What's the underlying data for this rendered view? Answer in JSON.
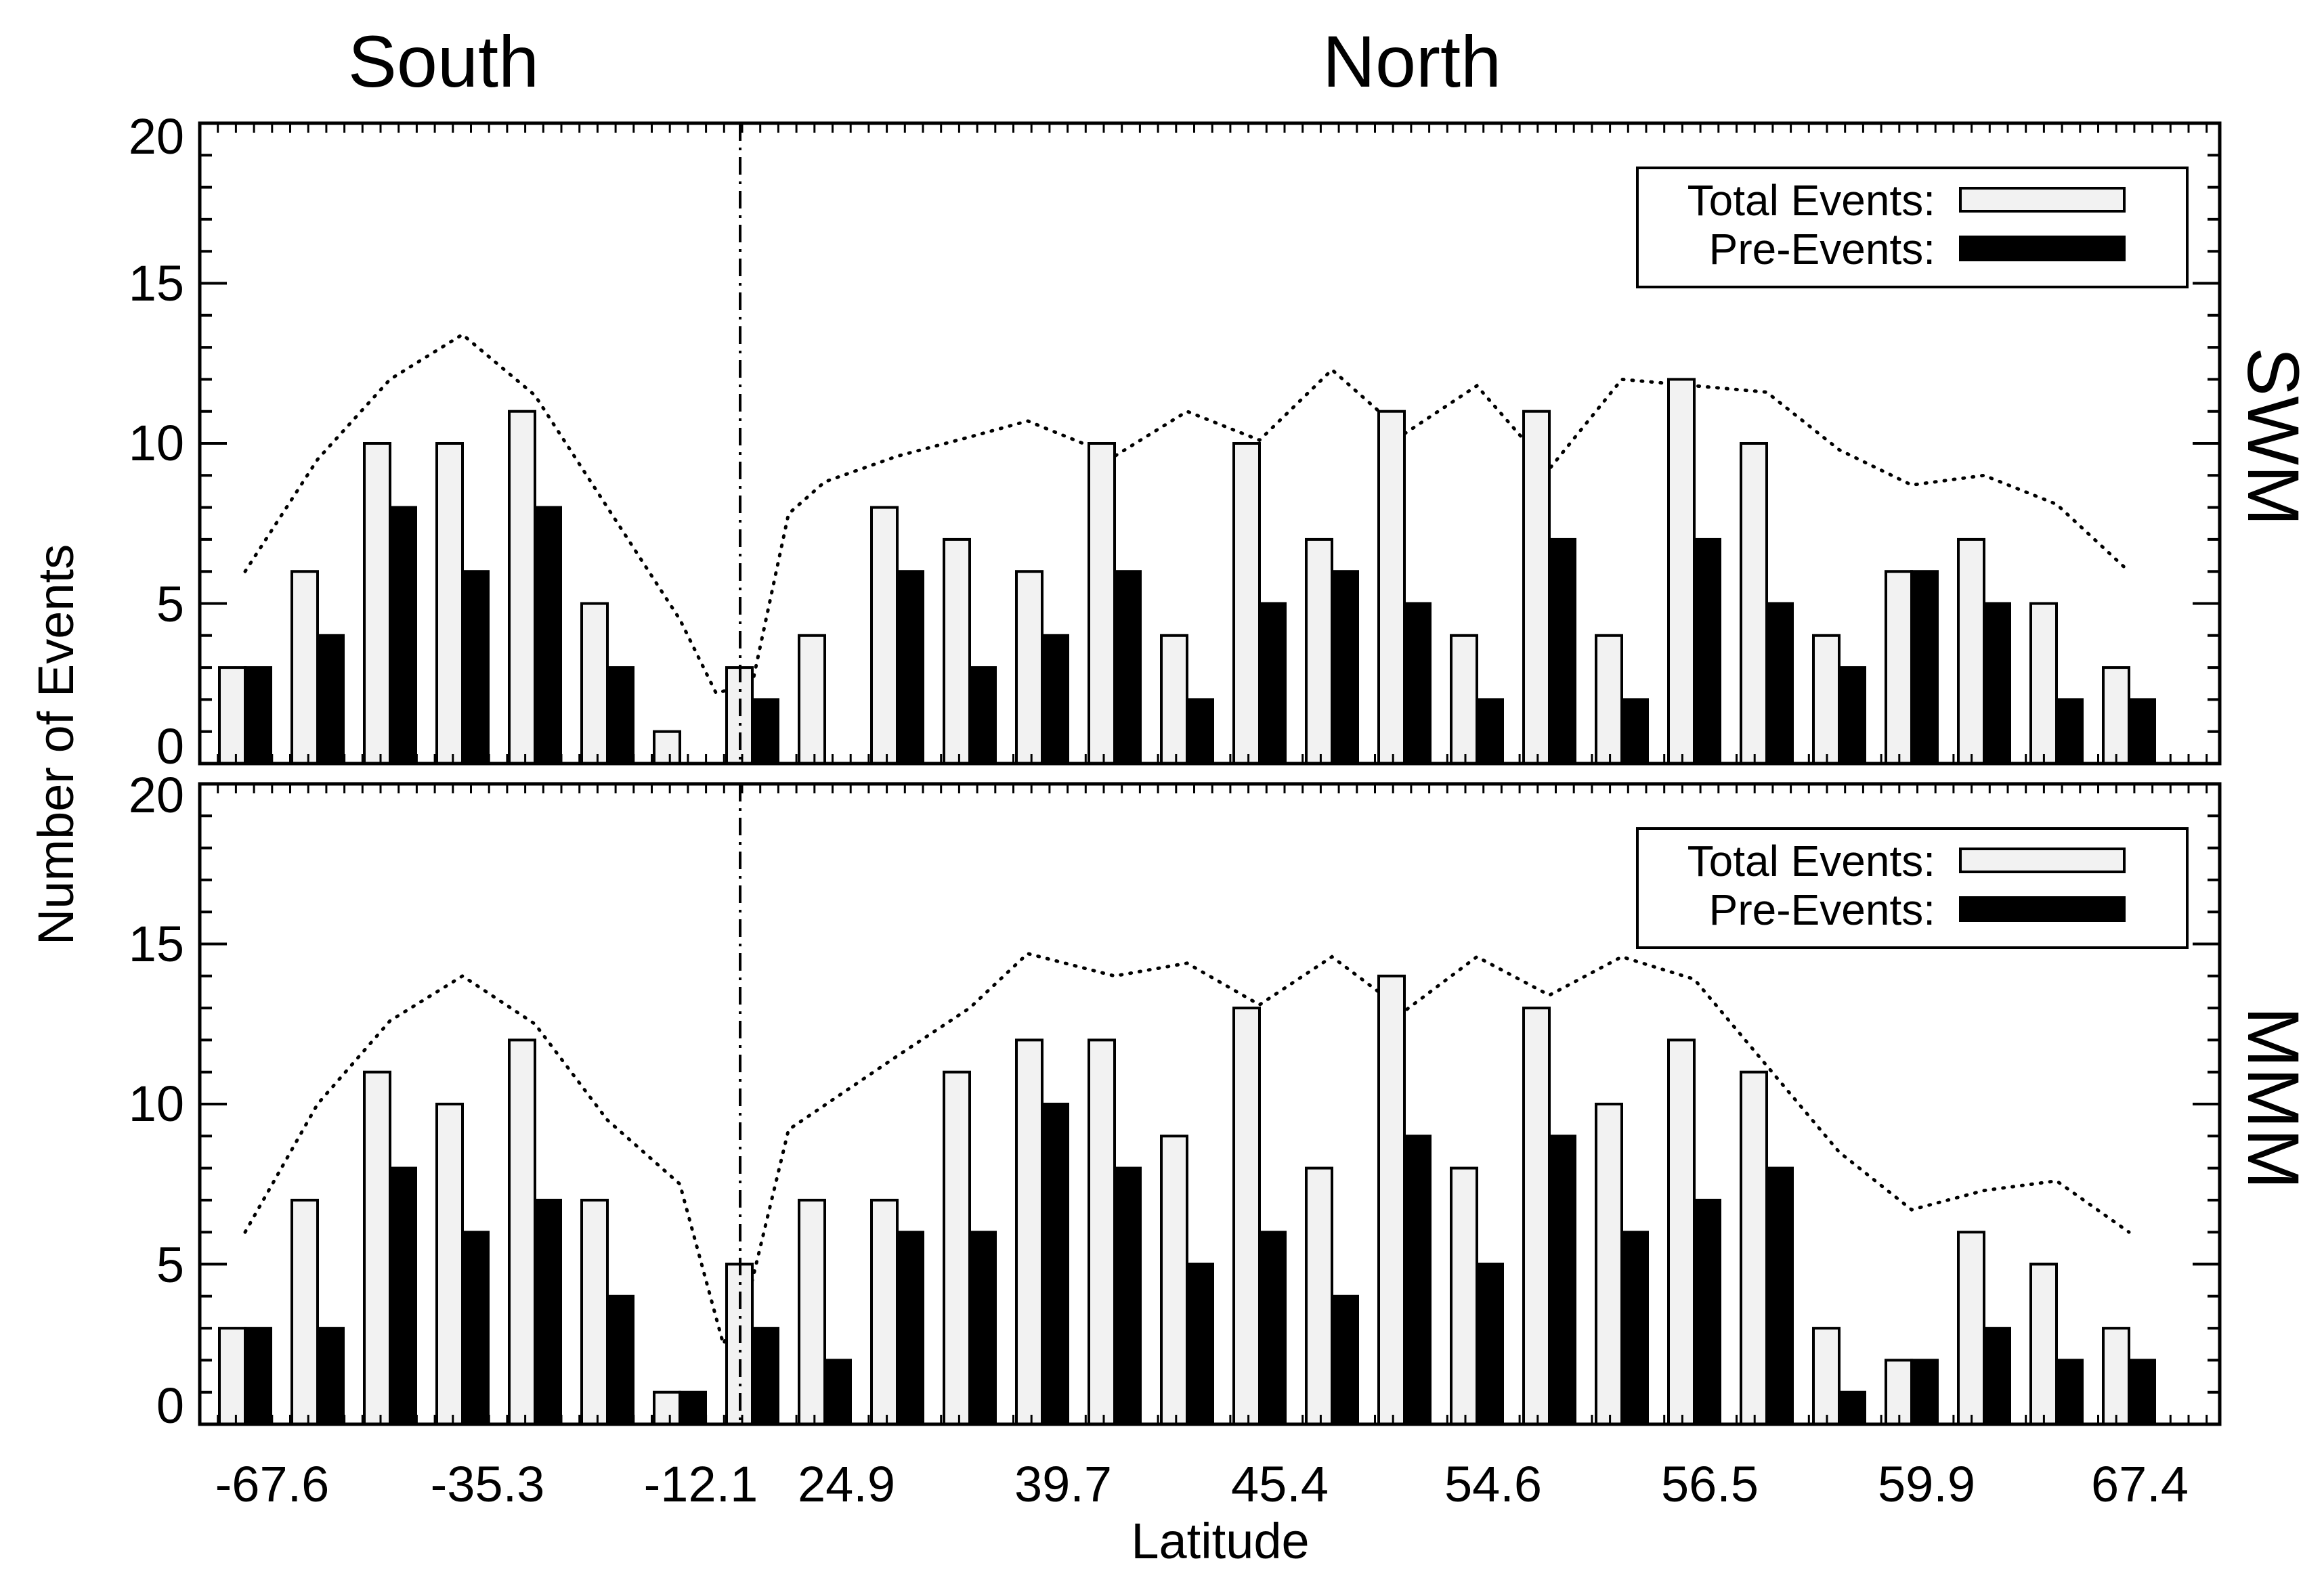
{
  "chart_data": {
    "type": "bar",
    "xlabel": "Latitude",
    "ylabel": "Number of Events",
    "region_labels": [
      "South",
      "North"
    ],
    "x_tick_labels": [
      "-67.6",
      "-35.3",
      "-12.1",
      "24.9",
      "39.7",
      "45.4",
      "54.6",
      "56.5",
      "59.9",
      "67.4"
    ],
    "y_tick_labels": [
      "0",
      "5",
      "10",
      "15",
      "20"
    ],
    "ylim": [
      0,
      20
    ],
    "legend": {
      "total_label": "Total Events:",
      "pre_label": "Pre-Events:",
      "position": "top-right"
    },
    "colors": {
      "total": "#f2f2f2",
      "pre": "#000000",
      "outline": "#000000"
    },
    "panels": [
      {
        "name": "SWM",
        "series": [
          {
            "name": "Total Events",
            "values": [
              3,
              6,
              10,
              10,
              11,
              5,
              1,
              3,
              4,
              8,
              7,
              6,
              10,
              4,
              10,
              7,
              11,
              4,
              11,
              4,
              12,
              10,
              4,
              6,
              7,
              5,
              3
            ]
          },
          {
            "name": "Pre-Events",
            "values": [
              3,
              4,
              8,
              6,
              8,
              3,
              0,
              2,
              0,
              6,
              3,
              4,
              6,
              2,
              5,
              6,
              5,
              2,
              7,
              2,
              7,
              5,
              3,
              6,
              5,
              2,
              2
            ]
          }
        ],
        "dotted_line": [
          {
            "x": 0,
            "y": 6
          },
          {
            "x": 1,
            "y": 9.5
          },
          {
            "x": 2,
            "y": 12
          },
          {
            "x": 3,
            "y": 13.4
          },
          {
            "x": 4,
            "y": 11.5
          },
          {
            "x": 5,
            "y": 8
          },
          {
            "x": 6,
            "y": 4.5
          },
          {
            "x": 6.5,
            "y": 2.2
          },
          {
            "x": 7,
            "y": 2.5
          },
          {
            "x": 7.5,
            "y": 7.8
          },
          {
            "x": 8,
            "y": 8.8
          },
          {
            "x": 9,
            "y": 9.6
          },
          {
            "x": 10,
            "y": 10.2
          },
          {
            "x": 10.8,
            "y": 10.7
          },
          {
            "x": 12,
            "y": 9.6
          },
          {
            "x": 13,
            "y": 11
          },
          {
            "x": 14,
            "y": 10.1
          },
          {
            "x": 15,
            "y": 12.3
          },
          {
            "x": 16,
            "y": 10.3
          },
          {
            "x": 17,
            "y": 11.8
          },
          {
            "x": 18,
            "y": 9.2
          },
          {
            "x": 19,
            "y": 12
          },
          {
            "x": 20,
            "y": 11.8
          },
          {
            "x": 21,
            "y": 11.6
          },
          {
            "x": 22,
            "y": 9.8
          },
          {
            "x": 23,
            "y": 8.7
          },
          {
            "x": 24,
            "y": 9
          },
          {
            "x": 25,
            "y": 8.1
          },
          {
            "x": 26,
            "y": 6
          }
        ]
      },
      {
        "name": "MMM",
        "series": [
          {
            "name": "Total Events",
            "values": [
              3,
              7,
              11,
              10,
              12,
              7,
              1,
              5,
              7,
              7,
              11,
              12,
              12,
              9,
              13,
              8,
              14,
              8,
              13,
              10,
              12,
              11,
              3,
              2,
              6,
              5,
              3
            ]
          },
          {
            "name": "Pre-Events",
            "values": [
              3,
              3,
              8,
              6,
              7,
              4,
              1,
              3,
              2,
              6,
              6,
              10,
              8,
              5,
              6,
              4,
              9,
              5,
              9,
              6,
              7,
              8,
              1,
              2,
              3,
              2,
              2
            ]
          }
        ],
        "dotted_line": [
          {
            "x": 0,
            "y": 6
          },
          {
            "x": 1,
            "y": 10
          },
          {
            "x": 2,
            "y": 12.6
          },
          {
            "x": 3,
            "y": 14
          },
          {
            "x": 4,
            "y": 12.5
          },
          {
            "x": 5,
            "y": 9.5
          },
          {
            "x": 6,
            "y": 7.5
          },
          {
            "x": 6.6,
            "y": 2.5
          },
          {
            "x": 7,
            "y": 4.5
          },
          {
            "x": 7.5,
            "y": 9.2
          },
          {
            "x": 9,
            "y": 11.5
          },
          {
            "x": 10,
            "y": 13
          },
          {
            "x": 10.8,
            "y": 14.7
          },
          {
            "x": 12,
            "y": 14
          },
          {
            "x": 13,
            "y": 14.4
          },
          {
            "x": 14,
            "y": 13.1
          },
          {
            "x": 15,
            "y": 14.6
          },
          {
            "x": 16,
            "y": 12.9
          },
          {
            "x": 17,
            "y": 14.6
          },
          {
            "x": 18,
            "y": 13.4
          },
          {
            "x": 19,
            "y": 14.6
          },
          {
            "x": 20,
            "y": 13.9
          },
          {
            "x": 21,
            "y": 11.2
          },
          {
            "x": 22,
            "y": 8.5
          },
          {
            "x": 23,
            "y": 6.7
          },
          {
            "x": 24,
            "y": 7.3
          },
          {
            "x": 25,
            "y": 7.6
          },
          {
            "x": 26,
            "y": 6
          }
        ]
      }
    ]
  }
}
